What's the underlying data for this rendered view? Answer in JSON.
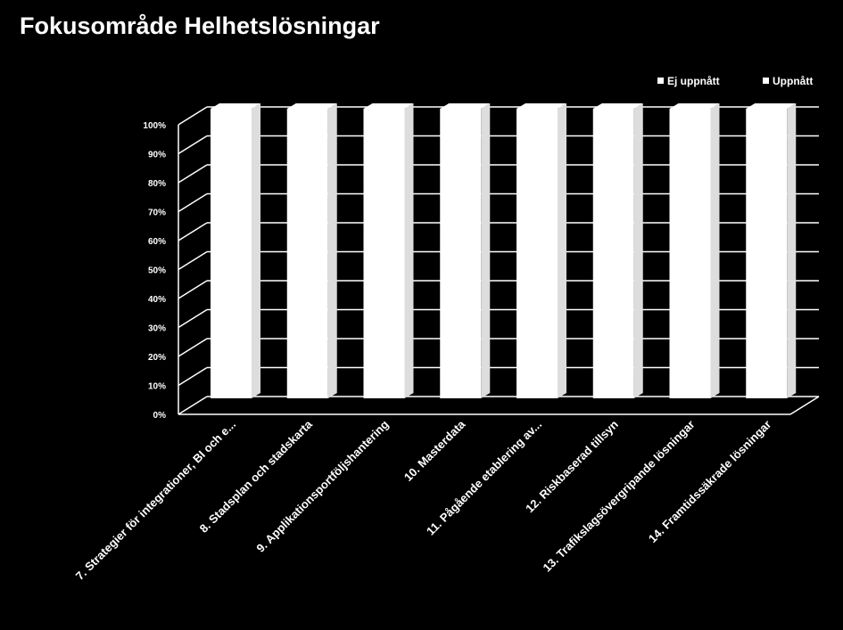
{
  "title": "Fokusområde Helhetslösningar",
  "chart_data": {
    "type": "bar",
    "stacked": true,
    "title": "Fokusområde Helhetslösningar",
    "categories": [
      "7. Strategier för integrationer, BI och e...",
      "8. Stadsplan och stadskarta",
      "9. Applikationsportföljshantering",
      "10. Masterdata",
      "11. Pågående etablering av...",
      "12. Riskbaserad tillsyn",
      "13. Trafikslagsövergripande lösningar",
      "14. Framtidssäkrade lösningar"
    ],
    "series": [
      {
        "name": "Ej uppnått",
        "values": [
          0,
          0,
          0,
          0,
          0,
          0,
          0,
          0
        ]
      },
      {
        "name": "Uppnått",
        "values": [
          100,
          100,
          100,
          100,
          100,
          100,
          100,
          100
        ]
      }
    ],
    "ylim": [
      0,
      100
    ],
    "yticks": [
      "0%",
      "10%",
      "20%",
      "30%",
      "40%",
      "50%",
      "60%",
      "70%",
      "80%",
      "90%",
      "100%"
    ],
    "xlabel": "",
    "ylabel": "",
    "legend": "top-right",
    "grid": true,
    "colors": {
      "background": "#000000",
      "bar": "#ffffff",
      "grid": "#ffffff",
      "text": "#ffffff"
    }
  }
}
